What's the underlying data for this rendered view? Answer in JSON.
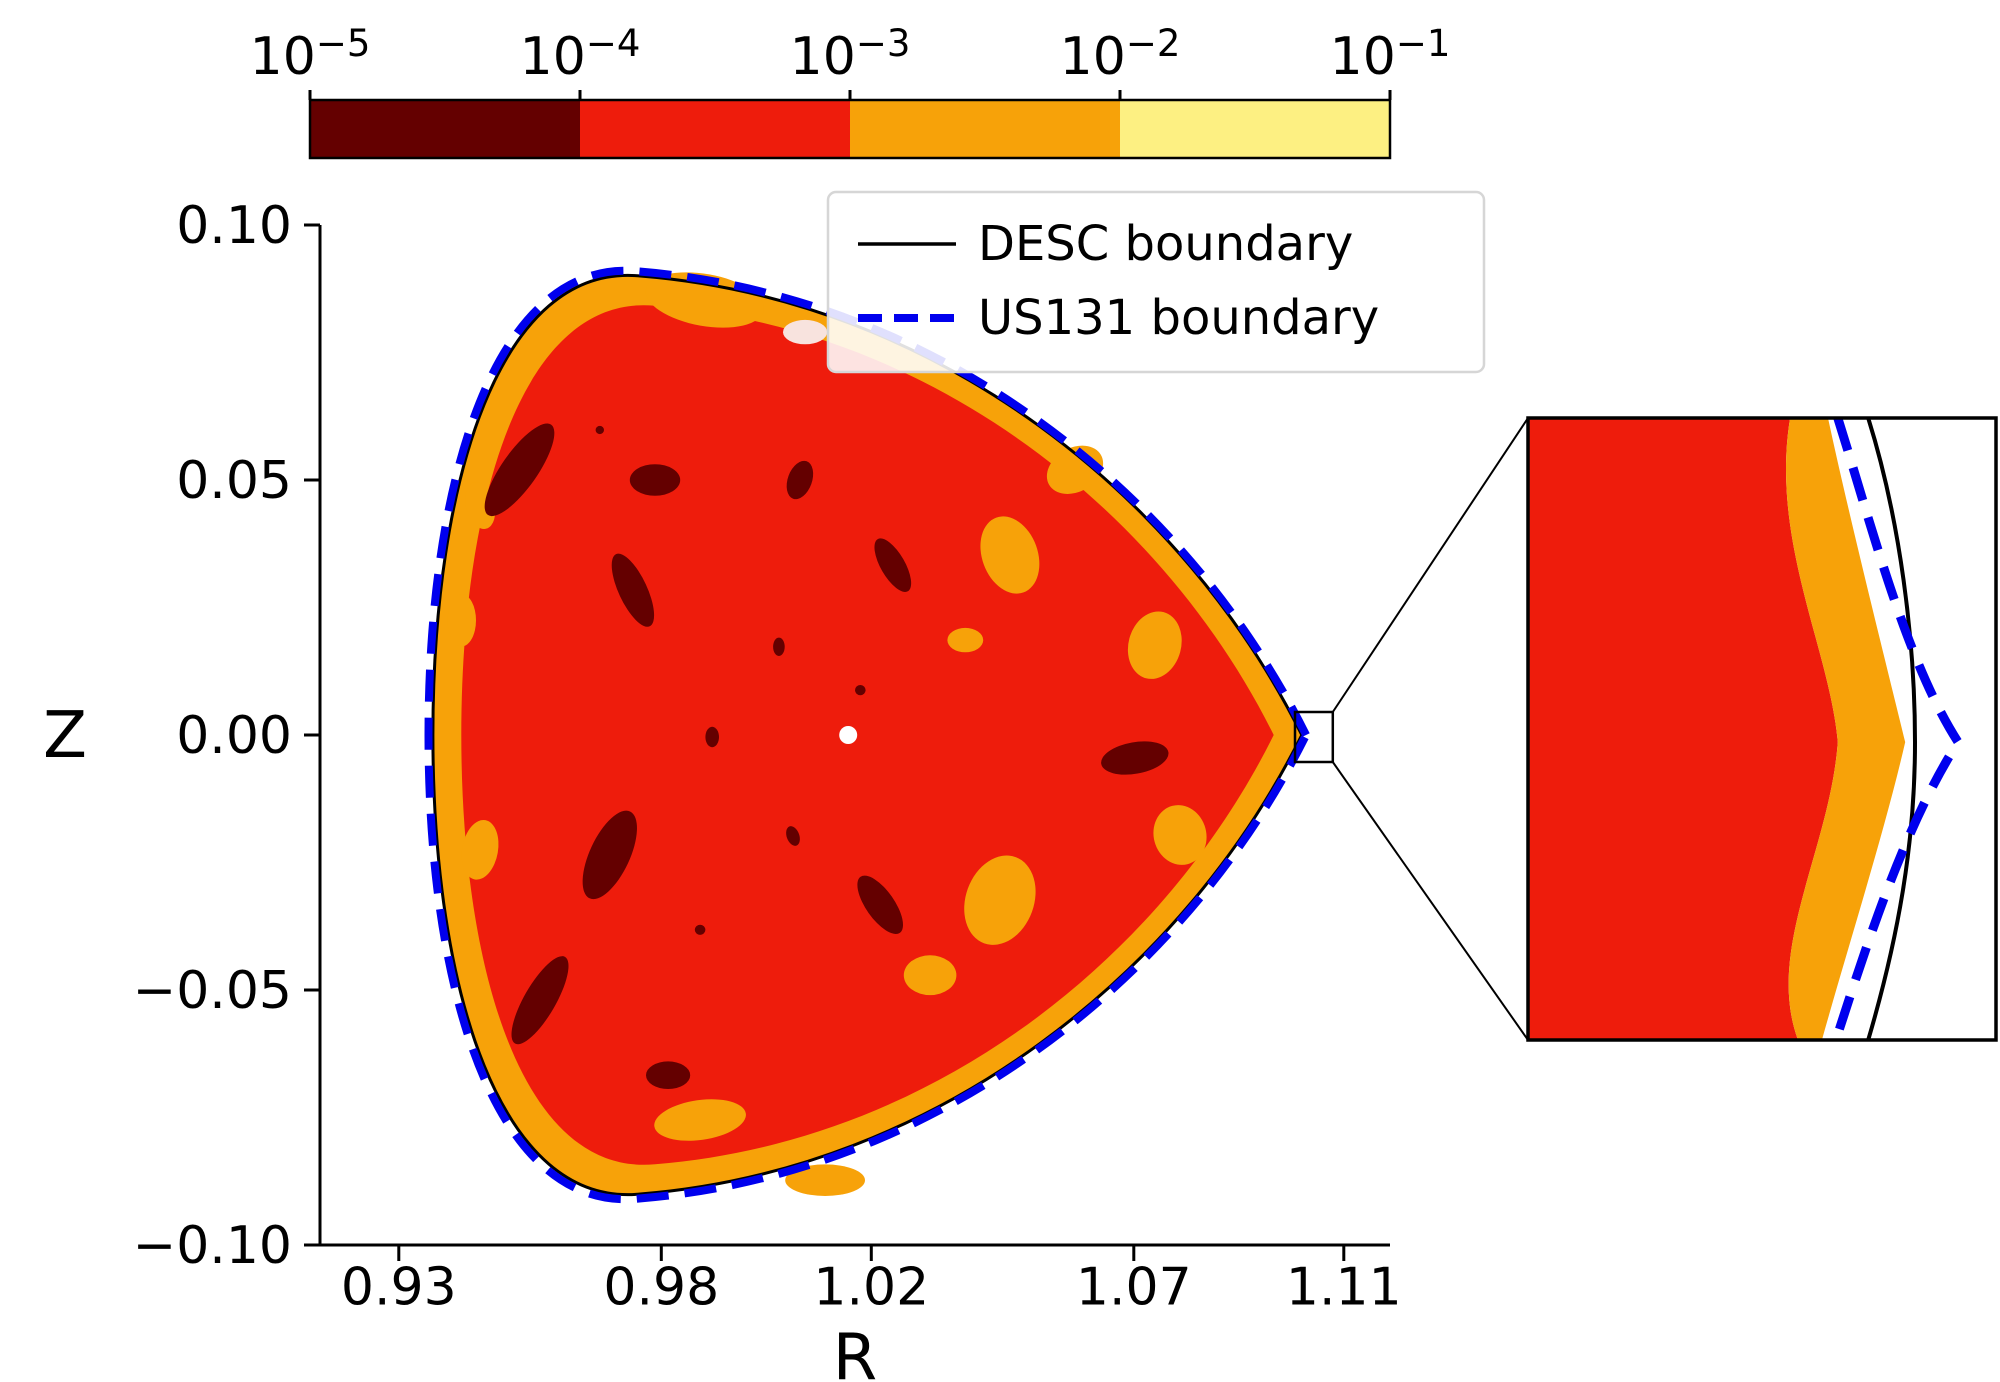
{
  "chart_data": {
    "type": "heatmap",
    "subtype": "filled-contour-cross-section",
    "title": "",
    "xlabel": "R",
    "ylabel": "Z",
    "xlim": [
      0.915,
      1.1188
    ],
    "ylim": [
      -0.1,
      0.1
    ],
    "x_ticks": {
      "values": [
        0.93,
        0.98,
        1.02,
        1.07,
        1.11
      ],
      "labels": [
        "0.93",
        "0.98",
        "1.02",
        "1.07",
        "1.11"
      ]
    },
    "y_ticks": {
      "values": [
        0.1,
        0.05,
        0.0,
        -0.05,
        -0.1
      ],
      "labels": [
        "0.10",
        "0.05",
        "0.00",
        "−0.05",
        "−0.10"
      ]
    },
    "colorbar": {
      "scale": "log",
      "orientation": "horizontal",
      "position": "top",
      "levels": [
        1e-05,
        0.0001,
        0.001,
        0.01,
        0.1
      ],
      "tick_base": "10",
      "tick_exponents": [
        "−5",
        "−4",
        "−3",
        "−2",
        "−1"
      ],
      "colors": [
        "#640000",
        "#ee1c0c",
        "#f7a209",
        "#fdf082"
      ]
    },
    "legend": {
      "position": "upper right",
      "entries": [
        {
          "label": "DESC boundary",
          "color": "#000000",
          "style": "solid"
        },
        {
          "label": "US131 boundary",
          "color": "#0000ee",
          "style": "dashed"
        }
      ]
    },
    "boundary": {
      "start": [
        1.102,
        0.0
      ],
      "segments": [
        {
          "c1": [
            1.0798,
            0.0461
          ],
          "c2": [
            1.0331,
            0.0853
          ],
          "p": [
            0.976,
            0.09
          ]
        },
        {
          "c1": [
            0.9493,
            0.0927
          ],
          "c2": [
            0.9365,
            0.05
          ],
          "p": [
            0.9365,
            0.0
          ]
        },
        {
          "c1": [
            0.9365,
            -0.05
          ],
          "c2": [
            0.9493,
            -0.0927
          ],
          "p": [
            0.976,
            -0.09
          ]
        },
        {
          "c1": [
            1.0331,
            -0.0853
          ],
          "c2": [
            1.0798,
            -0.0461
          ],
          "p": [
            1.102,
            0.0
          ]
        }
      ]
    },
    "shape_center": [
      1.0198,
      0.0
    ],
    "inner_contour_scale": 0.935,
    "us131_offset_scale": 1.01,
    "axis_point": {
      "R": 1.0156,
      "Z": 0.0
    },
    "pale_spot_color": "#f8e3de",
    "dark_spots": [
      [
        0.953,
        0.052,
        0.0034,
        0.0108,
        35
      ],
      [
        0.9746,
        0.0284,
        0.0027,
        0.0078,
        -25
      ],
      [
        0.9788,
        0.05,
        0.0048,
        0.0031,
        0
      ],
      [
        1.0064,
        0.05,
        0.0023,
        0.0039,
        20
      ],
      [
        1.0241,
        0.0333,
        0.0023,
        0.0059,
        -30
      ],
      [
        0.9702,
        -0.0235,
        0.0038,
        0.0094,
        25
      ],
      [
        0.9569,
        -0.052,
        0.003,
        0.0098,
        30
      ],
      [
        0.9813,
        -0.0667,
        0.0042,
        0.0027,
        0
      ],
      [
        1.0217,
        -0.0333,
        0.0027,
        0.0067,
        -35
      ],
      [
        1.0702,
        -0.0045,
        0.0065,
        0.0031,
        -10
      ],
      [
        0.9897,
        -0.0004,
        0.0013,
        0.002,
        0
      ],
      [
        1.0024,
        0.0173,
        0.0011,
        0.0018,
        0
      ],
      [
        1.0179,
        0.0088,
        0.001,
        0.001,
        0
      ],
      [
        0.9874,
        -0.0382,
        0.001,
        0.001,
        0
      ],
      [
        0.9683,
        0.0598,
        0.0008,
        0.0008,
        0
      ],
      [
        1.0051,
        -0.0198,
        0.0012,
        0.002,
        -20
      ]
    ],
    "orange_spots": [
      [
        0.9883,
        0.0853,
        0.0114,
        0.0051,
        10
      ],
      [
        1.0464,
        0.0353,
        0.0053,
        0.0078,
        -20
      ],
      [
        1.0588,
        0.052,
        0.0057,
        0.0043,
        -30
      ],
      [
        1.0379,
        0.0186,
        0.0034,
        0.0024,
        0
      ],
      [
        1.074,
        0.0176,
        0.005,
        0.0067,
        15
      ],
      [
        1.0788,
        -0.0196,
        0.005,
        0.0059,
        -15
      ],
      [
        1.0445,
        -0.0324,
        0.0065,
        0.009,
        20
      ],
      [
        1.0312,
        -0.0471,
        0.005,
        0.0039,
        0
      ],
      [
        0.9874,
        -0.0755,
        0.0088,
        0.0039,
        -8
      ],
      [
        0.9455,
        -0.0225,
        0.0034,
        0.0059,
        10
      ],
      [
        0.942,
        0.0225,
        0.0027,
        0.0051,
        0
      ],
      [
        1.0112,
        -0.0873,
        0.0076,
        0.0031,
        0
      ],
      [
        0.9455,
        0.045,
        0.0027,
        0.0047,
        -15
      ]
    ],
    "pale_spots": [
      [
        1.0074,
        0.079,
        0.0042,
        0.0024,
        0
      ]
    ],
    "zoom_box": {
      "R": [
        1.1007,
        1.1079
      ],
      "Z": [
        -0.0053,
        0.0045
      ]
    },
    "inset": {
      "red_edge": {
        "p0": [
          0.56,
          0
        ],
        "c1": [
          0.517,
          0.196
        ],
        "c2": [
          0.645,
          0.373
        ],
        "m": [
          0.662,
          0.521
        ],
        "c3": [
          0.645,
          0.694
        ],
        "c4": [
          0.506,
          0.855
        ],
        "p1": [
          0.577,
          1
        ]
      },
      "orange_edge": {
        "p0": [
          0.641,
          0
        ],
        "c1": [
          0.688,
          0.164
        ],
        "c2": [
          0.763,
          0.389
        ],
        "m": [
          0.806,
          0.521
        ],
        "c3": [
          0.763,
          0.662
        ],
        "c4": [
          0.688,
          0.839
        ],
        "p1": [
          0.628,
          1
        ]
      },
      "desc_curve": {
        "p0": [
          0.727,
          0
        ],
        "c1": [
          0.795,
          0.164
        ],
        "c2": [
          0.827,
          0.357
        ],
        "m": [
          0.827,
          0.521
        ],
        "c3": [
          0.827,
          0.686
        ],
        "c4": [
          0.79,
          0.839
        ],
        "p1": [
          0.727,
          1
        ]
      },
      "us131_curve": {
        "p0": [
          0.662,
          0
        ],
        "c1": [
          0.731,
          0.164
        ],
        "c2": [
          0.806,
          0.389
        ],
        "m": [
          0.919,
          0.521
        ],
        "c3": [
          0.806,
          0.654
        ],
        "c4": [
          0.727,
          0.839
        ],
        "p1": [
          0.658,
          1
        ]
      }
    }
  }
}
